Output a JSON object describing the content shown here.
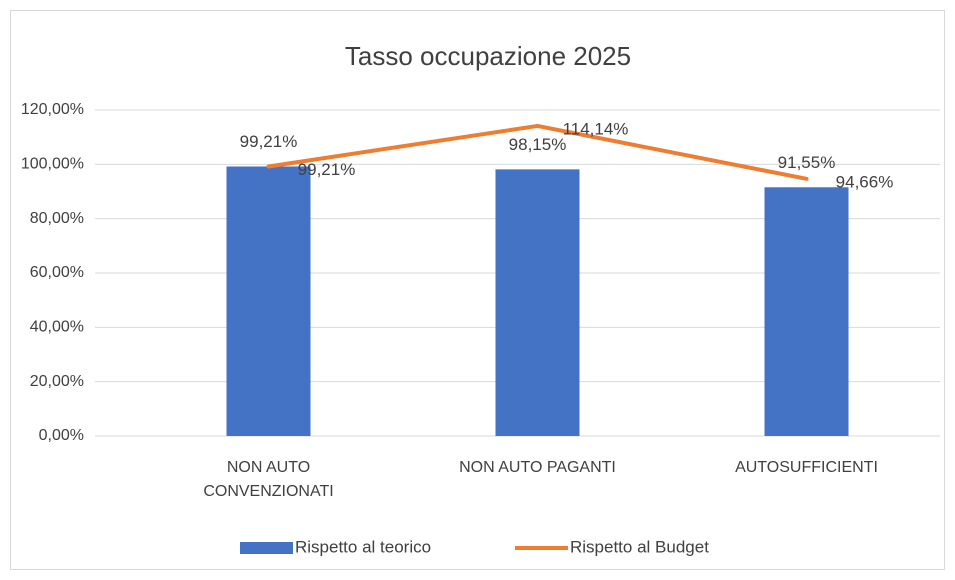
{
  "chart_data": {
    "type": "bar",
    "title": "Tasso occupazione 2025",
    "categories": [
      "NON AUTO CONVENZIONATI",
      "NON AUTO PAGANTI",
      "AUTOSUFFICIENTI"
    ],
    "series": [
      {
        "name": "Rispetto al teorico",
        "type": "bar",
        "color": "#4472c4",
        "values": [
          99.21,
          98.15,
          91.55
        ],
        "value_labels": [
          "99,21%",
          "98,15%",
          "91,55%"
        ]
      },
      {
        "name": "Rispetto al Budget",
        "type": "line",
        "color": "#ed7d31",
        "values": [
          99.21,
          114.14,
          94.66
        ],
        "value_labels": [
          "99,21%",
          "114,14%",
          "94,66%"
        ]
      }
    ],
    "ylim": [
      0,
      120
    ],
    "yticks": [
      {
        "value": 0,
        "label": "0,00%"
      },
      {
        "value": 20,
        "label": "20,00%"
      },
      {
        "value": 40,
        "label": "40,00%"
      },
      {
        "value": 60,
        "label": "60,00%"
      },
      {
        "value": 80,
        "label": "80,00%"
      },
      {
        "value": 100,
        "label": "100,00%"
      },
      {
        "value": 120,
        "label": "120,00%"
      }
    ],
    "grid": true,
    "legend": "bottom"
  }
}
